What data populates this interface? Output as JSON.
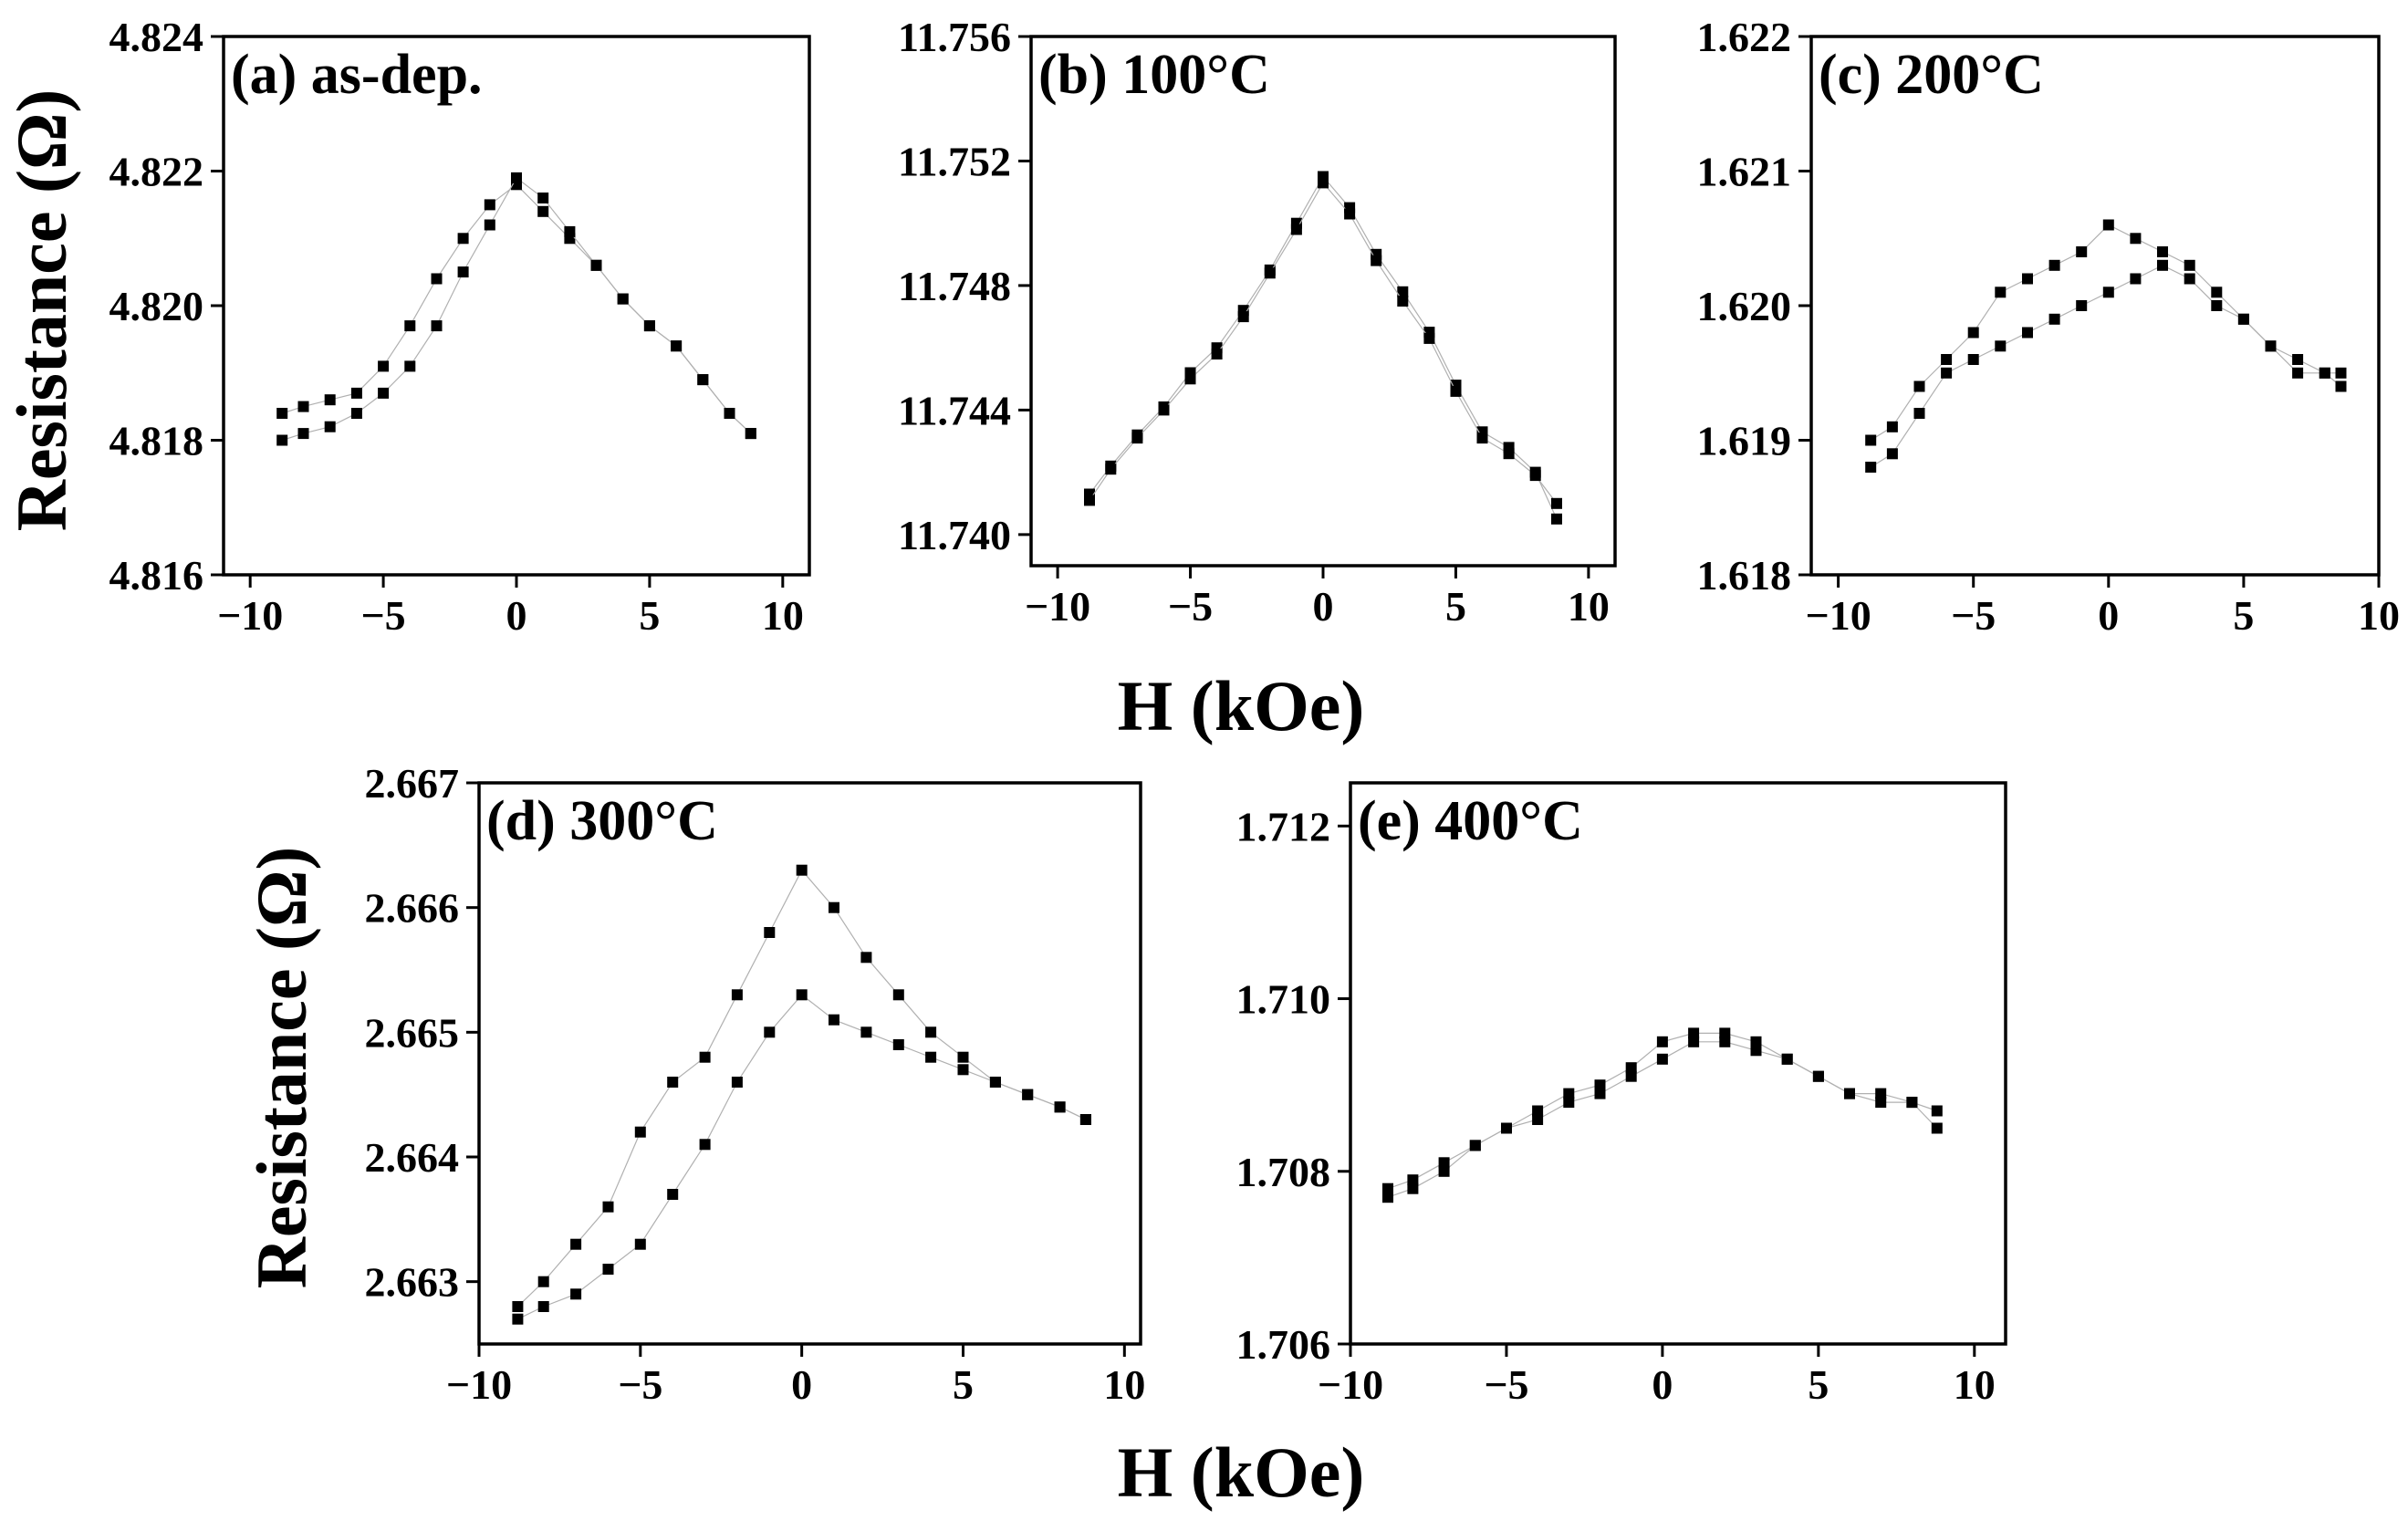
{
  "figure": {
    "xlabel_top": "H (kOe)",
    "xlabel_bottom": "H (kOe)",
    "ylabel_top": "Resistance (Ω)",
    "ylabel_bottom": "Resistance (Ω)"
  },
  "chart_data": [
    {
      "type": "scatter",
      "label": "(a) as-dep.",
      "xlim": [
        -11,
        11
      ],
      "ylim": [
        4.816,
        4.824
      ],
      "xticks": [
        "−10",
        "−5",
        "0",
        "5",
        "10"
      ],
      "yticks": [
        "4.816",
        "4.818",
        "4.820",
        "4.822",
        "4.824"
      ],
      "marker_color": "#000000",
      "series": [
        {
          "x": [
            -8.8,
            -8.0,
            -7.0,
            -6.0,
            -5.0,
            -4.0,
            -3.0,
            -2.0,
            -1.0,
            0.0,
            1.0,
            2.0,
            3.0,
            4.0,
            5.0,
            6.0,
            7.0,
            8.0,
            8.8
          ],
          "y": [
            4.8184,
            4.8185,
            4.8186,
            4.8187,
            4.8191,
            4.8197,
            4.8204,
            4.821,
            4.8215,
            4.8218,
            4.8214,
            4.821,
            4.8206,
            4.8201,
            4.8197,
            4.8194,
            4.8189,
            4.8184,
            4.8181
          ]
        },
        {
          "x": [
            8.8,
            8.0,
            7.0,
            6.0,
            5.0,
            4.0,
            3.0,
            2.0,
            1.0,
            0.0,
            -1.0,
            -2.0,
            -3.0,
            -4.0,
            -5.0,
            -6.0,
            -7.0,
            -8.0,
            -8.8
          ],
          "y": [
            4.8181,
            4.8184,
            4.8189,
            4.8194,
            4.8197,
            4.8201,
            4.8206,
            4.8211,
            4.8216,
            4.8219,
            4.8212,
            4.8205,
            4.8197,
            4.8191,
            4.8187,
            4.8184,
            4.8182,
            4.8181,
            4.818
          ]
        }
      ]
    },
    {
      "type": "scatter",
      "label": "(b) 100°C",
      "xlim": [
        -11,
        11
      ],
      "ylim": [
        11.739,
        11.756
      ],
      "xticks": [
        "−10",
        "−5",
        "0",
        "5",
        "10"
      ],
      "yticks": [
        "11.740",
        "11.744",
        "11.748",
        "11.752",
        "11.756"
      ],
      "marker_color": "#000000",
      "series": [
        {
          "x": [
            -8.8,
            -8.0,
            -7.0,
            -6.0,
            -5.0,
            -4.0,
            -3.0,
            -2.0,
            -1.0,
            0.0,
            1.0,
            2.0,
            3.0,
            4.0,
            5.0,
            6.0,
            7.0,
            8.0,
            8.8
          ],
          "y": [
            11.7413,
            11.7422,
            11.7432,
            11.7441,
            11.7452,
            11.746,
            11.7472,
            11.7485,
            11.75,
            11.7515,
            11.7505,
            11.749,
            11.7478,
            11.7465,
            11.7448,
            11.7433,
            11.7428,
            11.742,
            11.7405
          ]
        },
        {
          "x": [
            8.8,
            8.0,
            7.0,
            6.0,
            5.0,
            4.0,
            3.0,
            2.0,
            1.0,
            0.0,
            -1.0,
            -2.0,
            -3.0,
            -4.0,
            -5.0,
            -6.0,
            -7.0,
            -8.0,
            -8.8
          ],
          "y": [
            11.741,
            11.7419,
            11.7426,
            11.7431,
            11.7446,
            11.7463,
            11.7475,
            11.7488,
            11.7503,
            11.7513,
            11.7498,
            11.7484,
            11.747,
            11.7458,
            11.745,
            11.744,
            11.7431,
            11.7421,
            11.7411
          ]
        }
      ]
    },
    {
      "type": "scatter",
      "label": "(c) 200°C",
      "xlim": [
        -11,
        10
      ],
      "ylim": [
        1.618,
        1.622
      ],
      "xticks": [
        "−10",
        "−5",
        "0",
        "5",
        "10"
      ],
      "yticks": [
        "1.618",
        "1.619",
        "1.620",
        "1.621",
        "1.622"
      ],
      "marker_color": "#000000",
      "series": [
        {
          "x": [
            -8.8,
            -8.0,
            -7.0,
            -6.0,
            -5.0,
            -4.0,
            -3.0,
            -2.0,
            -1.0,
            0.0,
            1.0,
            2.0,
            3.0,
            4.0,
            5.0,
            6.0,
            7.0,
            8.0,
            8.6
          ],
          "y": [
            1.619,
            1.6191,
            1.6194,
            1.6196,
            1.6198,
            1.6201,
            1.6202,
            1.6203,
            1.6204,
            1.6206,
            1.6205,
            1.6204,
            1.6203,
            1.6201,
            1.6199,
            1.6197,
            1.6195,
            1.6195,
            1.6195
          ]
        },
        {
          "x": [
            8.6,
            8.0,
            7.0,
            6.0,
            5.0,
            4.0,
            3.0,
            2.0,
            1.0,
            0.0,
            -1.0,
            -2.0,
            -3.0,
            -4.0,
            -5.0,
            -6.0,
            -7.0,
            -8.0,
            -8.8
          ],
          "y": [
            1.6194,
            1.6195,
            1.6196,
            1.6197,
            1.6199,
            1.62,
            1.6202,
            1.6203,
            1.6202,
            1.6201,
            1.62,
            1.6199,
            1.6198,
            1.6197,
            1.6196,
            1.6195,
            1.6192,
            1.6189,
            1.6188
          ]
        }
      ]
    },
    {
      "type": "scatter",
      "label": "(d) 300°C",
      "xlim": [
        -10,
        10.5
      ],
      "ylim": [
        2.6625,
        2.667
      ],
      "xticks": [
        "−10",
        "−5",
        "0",
        "5",
        "10"
      ],
      "yticks": [
        "2.663",
        "2.664",
        "2.665",
        "2.666",
        "2.667"
      ],
      "marker_color": "#000000",
      "series": [
        {
          "x": [
            -8.8,
            -8.0,
            -7.0,
            -6.0,
            -5.0,
            -4.0,
            -3.0,
            -2.0,
            -1.0,
            0.0,
            1.0,
            2.0,
            3.0,
            4.0,
            5.0,
            6.0,
            7.0,
            8.0,
            8.8
          ],
          "y": [
            2.6628,
            2.663,
            2.6633,
            2.6636,
            2.6642,
            2.6646,
            2.6648,
            2.6653,
            2.6658,
            2.6663,
            2.666,
            2.6656,
            2.6653,
            2.665,
            2.6648,
            2.6646,
            2.6645,
            2.6644,
            2.6643
          ]
        },
        {
          "x": [
            8.8,
            8.0,
            7.0,
            6.0,
            5.0,
            4.0,
            3.0,
            2.0,
            1.0,
            0.0,
            -1.0,
            -2.0,
            -3.0,
            -4.0,
            -5.0,
            -6.0,
            -7.0,
            -8.0,
            -8.8
          ],
          "y": [
            2.6643,
            2.6644,
            2.6645,
            2.6646,
            2.6647,
            2.6648,
            2.6649,
            2.665,
            2.6651,
            2.6653,
            2.665,
            2.6646,
            2.6641,
            2.6637,
            2.6633,
            2.6631,
            2.6629,
            2.6628,
            2.6627
          ]
        }
      ]
    },
    {
      "type": "scatter",
      "label": "(e) 400°C",
      "xlim": [
        -10,
        11
      ],
      "ylim": [
        1.706,
        1.7125
      ],
      "xticks": [
        "−10",
        "−5",
        "0",
        "5",
        "10"
      ],
      "yticks": [
        "1.706",
        "1.708",
        "1.710",
        "1.712"
      ],
      "marker_color": "#000000",
      "series": [
        {
          "x": [
            -8.8,
            -8.0,
            -7.0,
            -6.0,
            -5.0,
            -4.0,
            -3.0,
            -2.0,
            -1.0,
            0.0,
            1.0,
            2.0,
            3.0,
            4.0,
            5.0,
            6.0,
            7.0,
            8.0,
            8.8
          ],
          "y": [
            1.7078,
            1.7079,
            1.7081,
            1.7083,
            1.7085,
            1.7087,
            1.7089,
            1.709,
            1.7092,
            1.7095,
            1.7096,
            1.7096,
            1.7095,
            1.7093,
            1.7091,
            1.7089,
            1.7089,
            1.7088,
            1.7087
          ]
        },
        {
          "x": [
            8.8,
            8.0,
            7.0,
            6.0,
            5.0,
            4.0,
            3.0,
            2.0,
            1.0,
            0.0,
            -1.0,
            -2.0,
            -3.0,
            -4.0,
            -5.0,
            -6.0,
            -7.0,
            -8.0,
            -8.8
          ],
          "y": [
            1.7085,
            1.7088,
            1.7088,
            1.7089,
            1.7091,
            1.7093,
            1.7094,
            1.7095,
            1.7095,
            1.7093,
            1.7091,
            1.7089,
            1.7088,
            1.7086,
            1.7085,
            1.7083,
            1.708,
            1.7078,
            1.7077
          ]
        }
      ]
    }
  ]
}
